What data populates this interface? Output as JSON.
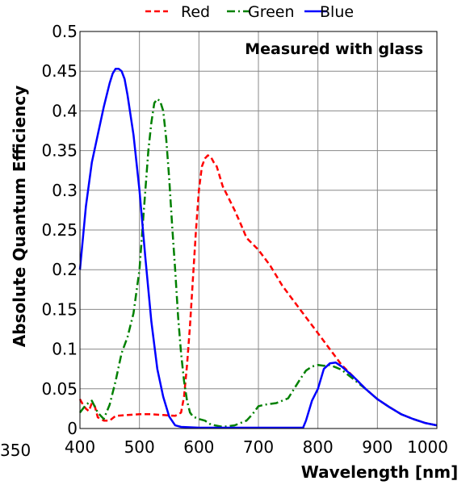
{
  "chart_data": {
    "type": "line",
    "xlabel": "Wavelength [nm]",
    "ylabel": "Absolute Quantum Efficiency",
    "annotation": "Measured with glass",
    "stray_tick_label": "350",
    "xlim": [
      400,
      1000
    ],
    "ylim": [
      0,
      0.5
    ],
    "xticks": [
      400,
      500,
      600,
      700,
      800,
      900,
      1000
    ],
    "yticks": [
      0,
      0.05,
      0.1,
      0.15,
      0.2,
      0.25,
      0.3,
      0.35,
      0.4,
      0.45,
      0.5
    ],
    "ytick_labels": [
      "0",
      "0.05",
      "0.1",
      "0.15",
      "0.2",
      "0.25",
      "0.3",
      "0.35",
      "0.4",
      "0.45",
      "0.5"
    ],
    "grid": true,
    "legend_position": "top-center",
    "series": [
      {
        "name": "Red",
        "color": "#ff0000",
        "dash": "dashed",
        "x": [
          400,
          405,
          410,
          415,
          420,
          425,
          430,
          440,
          450,
          460,
          480,
          500,
          520,
          540,
          560,
          570,
          575,
          580,
          585,
          590,
          595,
          600,
          605,
          610,
          615,
          620,
          625,
          630,
          640,
          650,
          660,
          670,
          680,
          700,
          720,
          740,
          760,
          780,
          800,
          820,
          840,
          860,
          880,
          900,
          920,
          940,
          960,
          980,
          1000
        ],
        "y": [
          0.037,
          0.03,
          0.025,
          0.022,
          0.032,
          0.028,
          0.014,
          0.01,
          0.01,
          0.016,
          0.017,
          0.018,
          0.018,
          0.017,
          0.016,
          0.02,
          0.04,
          0.08,
          0.13,
          0.19,
          0.25,
          0.3,
          0.33,
          0.34,
          0.344,
          0.342,
          0.335,
          0.33,
          0.305,
          0.29,
          0.275,
          0.258,
          0.24,
          0.225,
          0.205,
          0.18,
          0.16,
          0.14,
          0.12,
          0.1,
          0.08,
          0.065,
          0.05,
          0.037,
          0.027,
          0.018,
          0.012,
          0.007,
          0.004
        ]
      },
      {
        "name": "Green",
        "color": "#008000",
        "dash": "dashdot",
        "x": [
          400,
          410,
          420,
          430,
          440,
          450,
          460,
          470,
          480,
          490,
          500,
          505,
          510,
          515,
          520,
          525,
          530,
          535,
          540,
          545,
          550,
          555,
          560,
          565,
          570,
          575,
          580,
          585,
          590,
          600,
          610,
          620,
          640,
          660,
          680,
          690,
          700,
          710,
          730,
          750,
          760,
          770,
          780,
          790,
          800,
          810,
          820,
          830,
          840,
          860,
          880,
          900,
          920,
          940,
          960,
          980,
          1000
        ],
        "y": [
          0.02,
          0.03,
          0.035,
          0.02,
          0.012,
          0.03,
          0.06,
          0.095,
          0.115,
          0.145,
          0.2,
          0.25,
          0.3,
          0.35,
          0.385,
          0.41,
          0.415,
          0.412,
          0.4,
          0.365,
          0.315,
          0.255,
          0.2,
          0.14,
          0.095,
          0.06,
          0.035,
          0.02,
          0.015,
          0.012,
          0.01,
          0.005,
          0.002,
          0.004,
          0.01,
          0.018,
          0.028,
          0.03,
          0.032,
          0.038,
          0.05,
          0.062,
          0.073,
          0.078,
          0.08,
          0.079,
          0.08,
          0.077,
          0.074,
          0.062,
          0.05,
          0.037,
          0.027,
          0.018,
          0.012,
          0.007,
          0.004
        ]
      },
      {
        "name": "Blue",
        "color": "#0000ff",
        "dash": "solid",
        "x": [
          400,
          410,
          420,
          430,
          440,
          450,
          455,
          460,
          465,
          470,
          475,
          480,
          490,
          500,
          510,
          520,
          530,
          540,
          550,
          560,
          570,
          600,
          650,
          700,
          750,
          775,
          780,
          790,
          800,
          810,
          820,
          830,
          840,
          860,
          880,
          900,
          920,
          940,
          960,
          980,
          1000
        ],
        "y": [
          0.2,
          0.28,
          0.335,
          0.37,
          0.405,
          0.435,
          0.447,
          0.453,
          0.453,
          0.45,
          0.44,
          0.42,
          0.37,
          0.3,
          0.215,
          0.135,
          0.075,
          0.04,
          0.015,
          0.004,
          0.002,
          0.001,
          0.001,
          0.001,
          0.001,
          0.001,
          0.01,
          0.035,
          0.05,
          0.075,
          0.082,
          0.083,
          0.078,
          0.065,
          0.05,
          0.037,
          0.027,
          0.018,
          0.012,
          0.007,
          0.004
        ]
      }
    ]
  }
}
